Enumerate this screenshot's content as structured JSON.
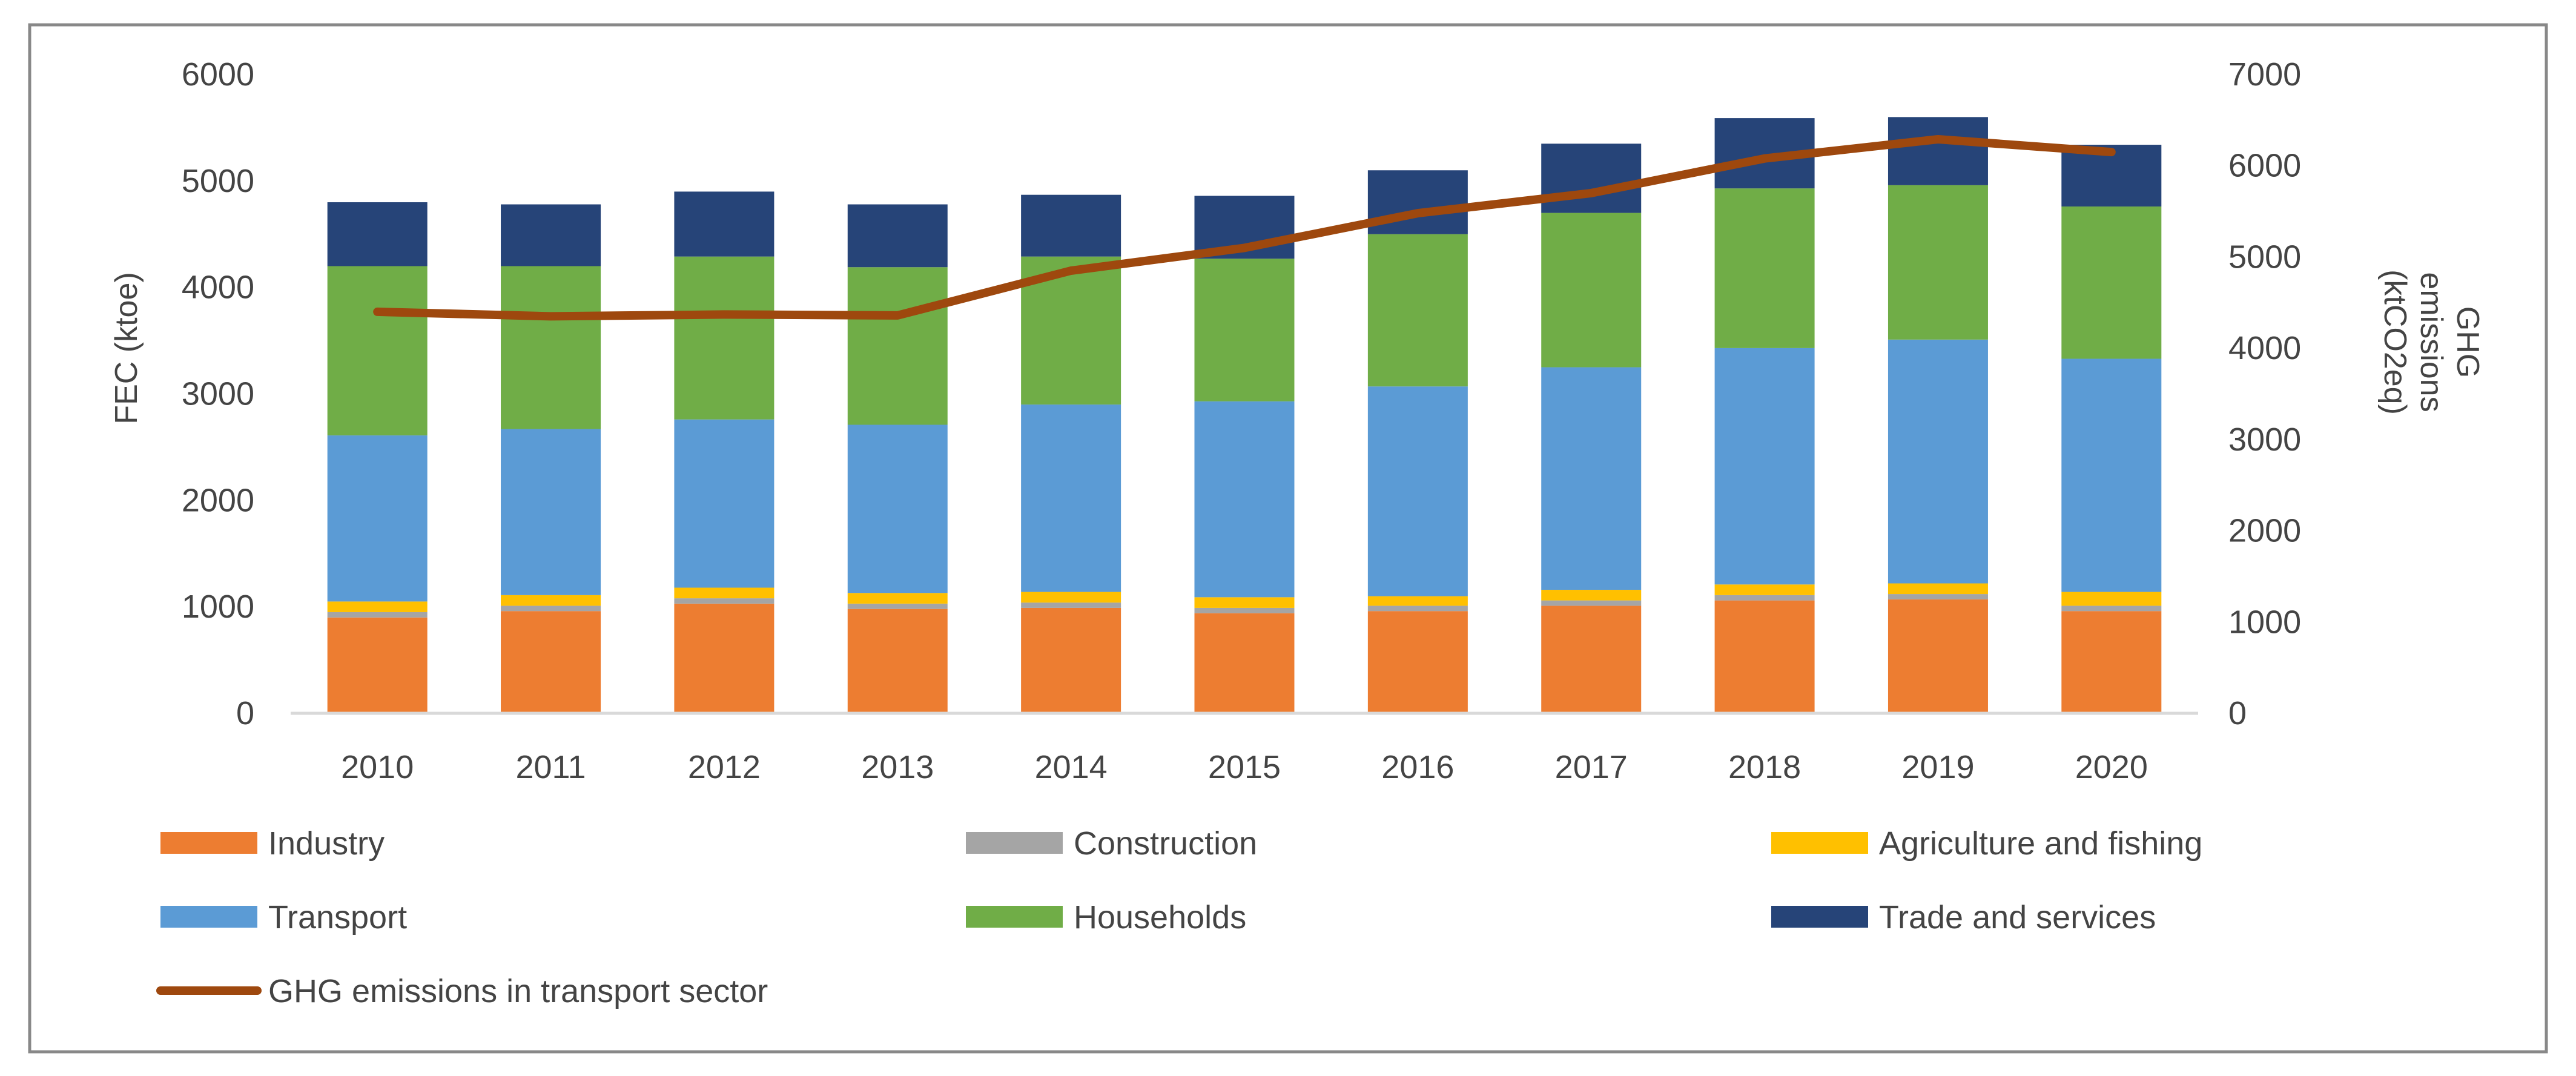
{
  "chart_data": {
    "type": "bar",
    "stacked": true,
    "categories": [
      "2010",
      "2011",
      "2012",
      "2013",
      "2014",
      "2015",
      "2016",
      "2017",
      "2018",
      "2019",
      "2020"
    ],
    "series": [
      {
        "name": "Industry",
        "color": "#ED7D31",
        "values": [
          900,
          960,
          1030,
          980,
          990,
          940,
          960,
          1010,
          1060,
          1070,
          960
        ]
      },
      {
        "name": "Construction",
        "color": "#A5A5A5",
        "values": [
          50,
          50,
          50,
          50,
          50,
          50,
          50,
          50,
          50,
          50,
          50
        ]
      },
      {
        "name": "Agriculture and fishing",
        "color": "#FFC000",
        "values": [
          100,
          100,
          100,
          100,
          100,
          100,
          90,
          100,
          100,
          100,
          130
        ]
      },
      {
        "name": "Transport",
        "color": "#5B9BD5",
        "values": [
          1560,
          1560,
          1580,
          1580,
          1760,
          1840,
          1970,
          2090,
          2220,
          2290,
          2190
        ]
      },
      {
        "name": "Households",
        "color": "#70AD47",
        "values": [
          1590,
          1530,
          1530,
          1480,
          1390,
          1340,
          1430,
          1450,
          1500,
          1450,
          1430
        ]
      },
      {
        "name": "Trade and services",
        "color": "#264478",
        "values": [
          600,
          580,
          610,
          590,
          580,
          590,
          600,
          650,
          660,
          640,
          580
        ]
      }
    ],
    "line_series": {
      "name": "GHG emissions in transport sector",
      "color": "#9E480E",
      "axis": "right",
      "values": [
        4400,
        4350,
        4370,
        4360,
        4850,
        5100,
        5480,
        5700,
        6080,
        6290,
        6150
      ]
    },
    "title": "",
    "xlabel": "",
    "ylabel": "FEC (ktoe)",
    "ylim": [
      0,
      6000
    ],
    "yticks": [
      "0",
      "1000",
      "2000",
      "3000",
      "4000",
      "5000",
      "6000"
    ],
    "y2label_lines": [
      "GHG",
      "emissions",
      "(ktCO2eq)"
    ],
    "y2lim": [
      0,
      7000
    ],
    "y2ticks": [
      "0",
      "1000",
      "2000",
      "3000",
      "4000",
      "5000",
      "6000",
      "7000"
    ],
    "grid": false,
    "legend_position": "bottom"
  }
}
